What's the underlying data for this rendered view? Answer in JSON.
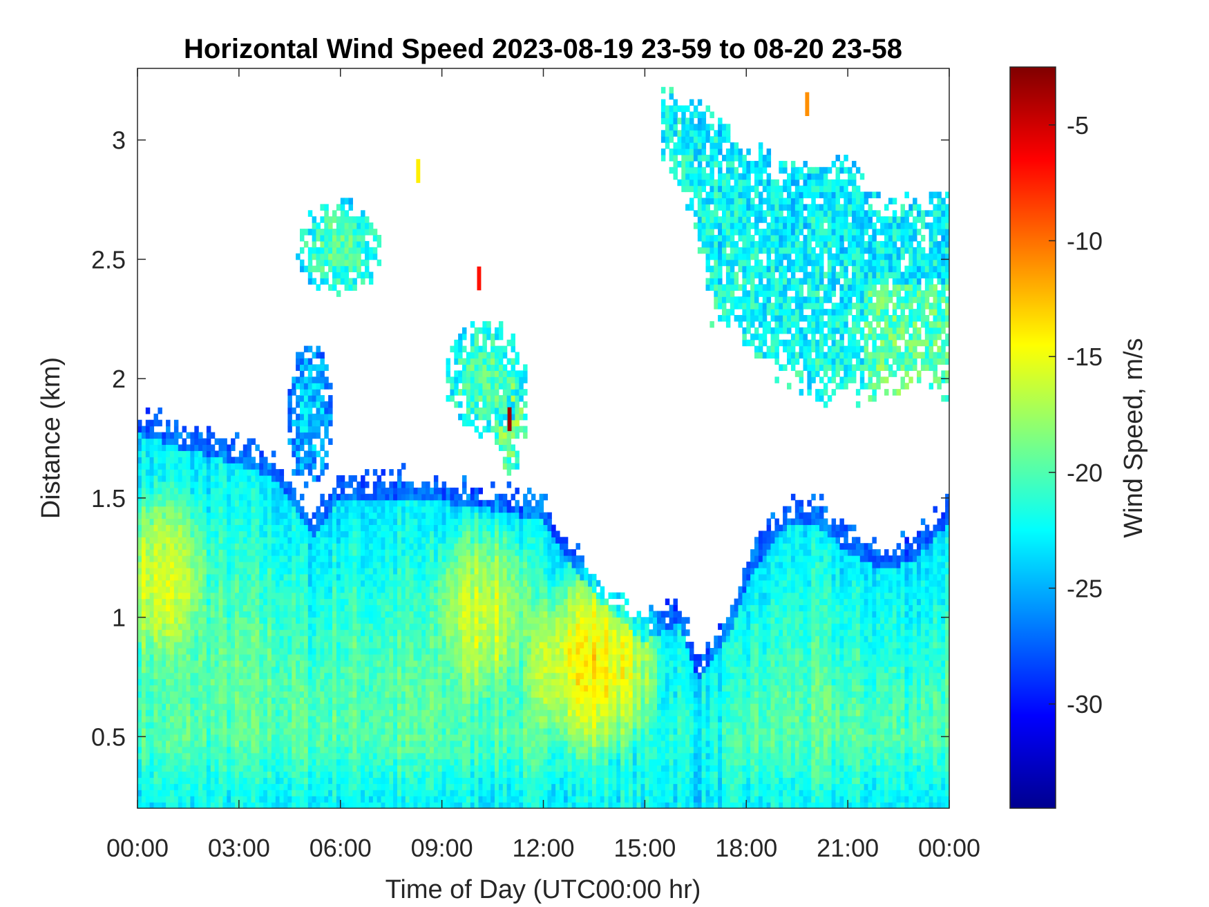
{
  "chart_data": {
    "type": "heatmap",
    "title": "Horizontal Wind Speed 2023-08-19 23-59 to 08-20 23-58",
    "xlabel": "Time of Day (UTC00:00 hr)",
    "ylabel": "Distance (km)",
    "xlim": [
      0,
      24
    ],
    "ylim": [
      0.2,
      3.3
    ],
    "x_ticks": [
      {
        "value": 0,
        "label": "00:00"
      },
      {
        "value": 3,
        "label": "03:00"
      },
      {
        "value": 6,
        "label": "06:00"
      },
      {
        "value": 9,
        "label": "09:00"
      },
      {
        "value": 12,
        "label": "12:00"
      },
      {
        "value": 15,
        "label": "15:00"
      },
      {
        "value": 18,
        "label": "18:00"
      },
      {
        "value": 21,
        "label": "21:00"
      },
      {
        "value": 24,
        "label": "00:00"
      }
    ],
    "y_ticks": [
      {
        "value": 0.5,
        "label": "0.5"
      },
      {
        "value": 1,
        "label": "1"
      },
      {
        "value": 1.5,
        "label": "1.5"
      },
      {
        "value": 2,
        "label": "2"
      },
      {
        "value": 2.5,
        "label": "2.5"
      },
      {
        "value": 3,
        "label": "3"
      }
    ],
    "colorbar": {
      "label": "Wind Speed, m/s",
      "colormap": "jet",
      "clim": [
        -34.5,
        -2.5
      ],
      "ticks": [
        {
          "value": -5,
          "label": "-5"
        },
        {
          "value": -10,
          "label": "-10"
        },
        {
          "value": -15,
          "label": "-15"
        },
        {
          "value": -20,
          "label": "-20"
        },
        {
          "value": -25,
          "label": "-25"
        },
        {
          "value": -30,
          "label": "-30"
        }
      ]
    },
    "grid": false,
    "lower_layer_top_km": [
      [
        0,
        1.85
      ],
      [
        1.5,
        1.78
      ],
      [
        3,
        1.72
      ],
      [
        4.2,
        1.65
      ],
      [
        5.2,
        1.42
      ],
      [
        6,
        1.58
      ],
      [
        7.5,
        1.58
      ],
      [
        10,
        1.55
      ],
      [
        12,
        1.48
      ],
      [
        12.8,
        1.3
      ],
      [
        14,
        1.1
      ],
      [
        15,
        0.98
      ],
      [
        16,
        1.05
      ],
      [
        16.6,
        0.82
      ],
      [
        17.5,
        1.0
      ],
      [
        18,
        1.22
      ],
      [
        19,
        1.45
      ],
      [
        20,
        1.48
      ],
      [
        21,
        1.35
      ],
      [
        22,
        1.28
      ],
      [
        23,
        1.32
      ],
      [
        24,
        1.48
      ]
    ],
    "upper_right_layer": {
      "x_range": [
        15.5,
        24
      ],
      "top_km": [
        [
          15.5,
          3.2
        ],
        [
          17,
          3.1
        ],
        [
          18,
          2.95
        ],
        [
          19,
          2.9
        ],
        [
          21,
          2.9
        ],
        [
          22,
          2.7
        ],
        [
          24,
          2.75
        ]
      ],
      "bottom_km": [
        [
          15.5,
          3.0
        ],
        [
          16.5,
          2.7
        ],
        [
          17,
          2.3
        ],
        [
          18,
          2.2
        ],
        [
          19,
          2.05
        ],
        [
          20,
          1.95
        ],
        [
          21,
          1.98
        ],
        [
          22,
          1.95
        ],
        [
          23,
          2.0
        ],
        [
          24,
          1.95
        ]
      ],
      "typical_speed": -22
    },
    "patches": [
      {
        "x_center": 6.0,
        "y_center": 2.55,
        "x_halfwidth": 1.3,
        "y_halfwidth": 0.2,
        "speed": -20
      },
      {
        "x_center": 5.1,
        "y_center": 1.85,
        "x_halfwidth": 0.7,
        "y_halfwidth": 0.3,
        "speed": -24
      },
      {
        "x_center": 10.3,
        "y_center": 2.0,
        "x_halfwidth": 1.2,
        "y_halfwidth": 0.25,
        "speed": -20
      },
      {
        "x_center": 11.0,
        "y_center": 1.85,
        "x_halfwidth": 0.5,
        "y_halfwidth": 0.25,
        "speed": -18
      }
    ],
    "speed_peak": {
      "x": 13.4,
      "y": 0.8,
      "speed": -14
    },
    "speed_maxima": [
      {
        "x": 0.7,
        "y": 1.15,
        "speed": -16
      },
      {
        "x": 10.2,
        "y": 1.0,
        "speed": -16
      }
    ],
    "isolated_extremes": [
      {
        "x": 11.0,
        "y": 1.83,
        "speed": -3.5
      },
      {
        "x": 10.1,
        "y": 2.42,
        "speed": -7
      },
      {
        "x": 8.3,
        "y": 2.87,
        "speed": -14
      },
      {
        "x": 19.8,
        "y": 3.15,
        "speed": -11
      }
    ]
  }
}
